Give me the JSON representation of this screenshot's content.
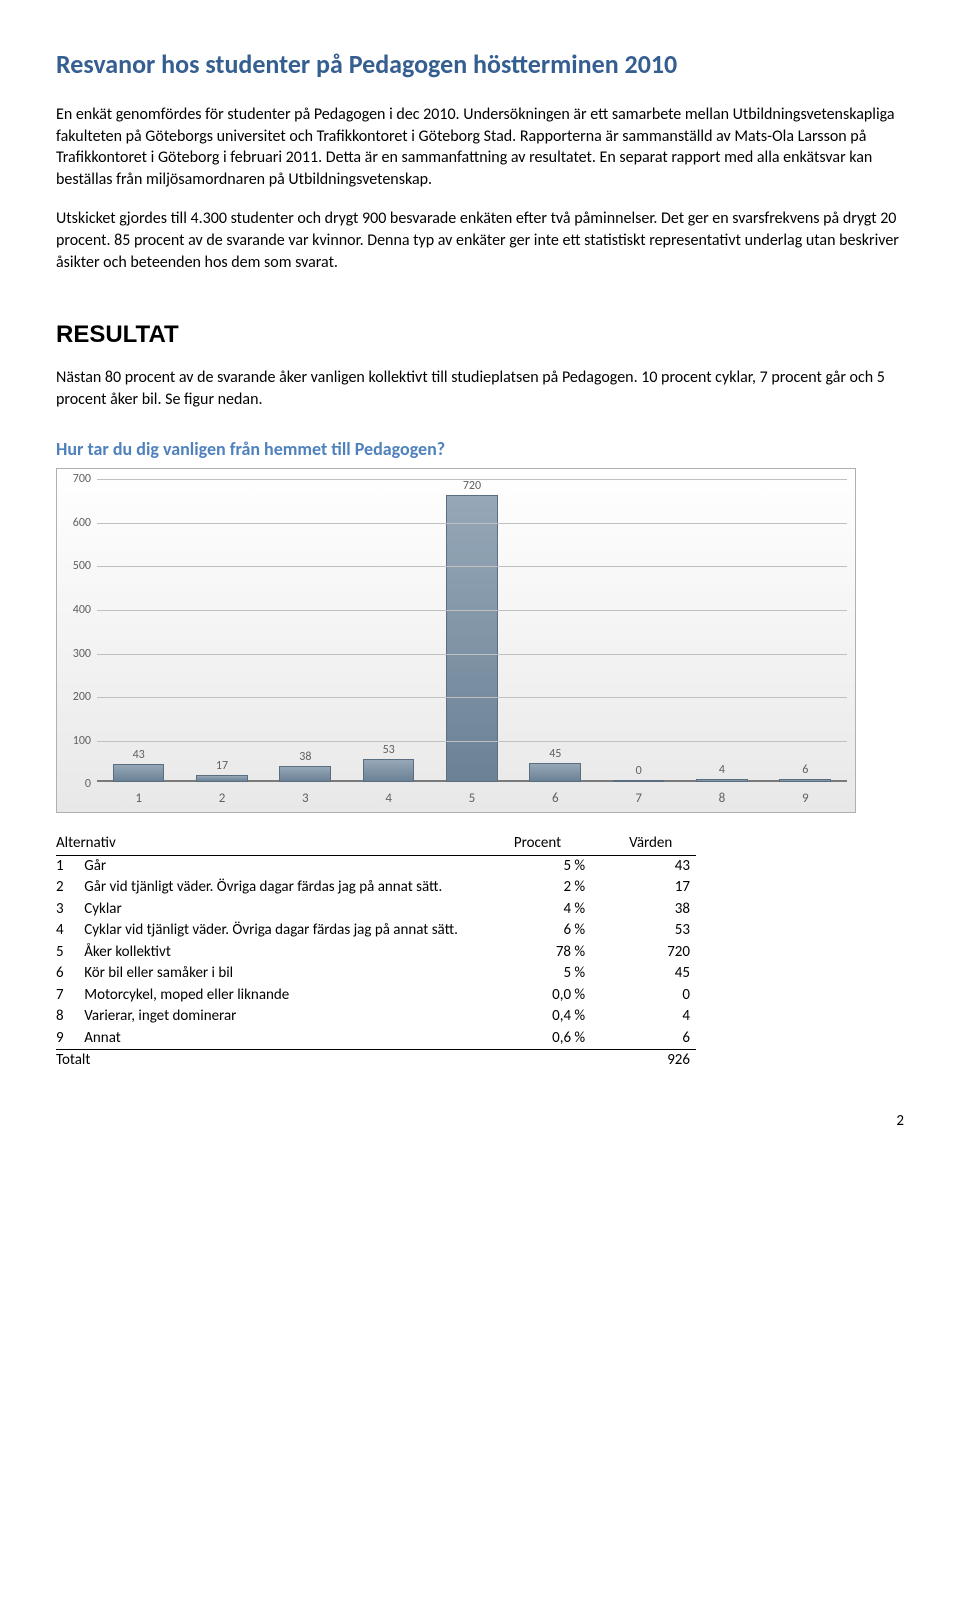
{
  "title": "Resvanor hos studenter på Pedagogen höstterminen 2010",
  "para1": "En enkät genomfördes för studenter på Pedagogen i dec 2010. Undersökningen är ett samarbete mellan Utbildningsvetenskapliga fakulteten på Göteborgs universitet och Trafikkontoret i Göteborg Stad. Rapporterna är sammanställd av Mats-Ola Larsson på Trafikkontoret i Göteborg i februari 2011. Detta är en sammanfattning av resultatet. En separat rapport med alla enkätsvar kan beställas från miljösamordnaren på Utbildningsvetenskap.",
  "para2": "Utskicket gjordes till 4.300 studenter och drygt 900 besvarade enkäten efter två påminnelser. Det ger en svarsfrekvens på drygt 20 procent. 85 procent av de svarande var kvinnor. Denna typ av enkäter ger inte ett statistiskt representativt underlag utan beskriver åsikter och beteenden hos dem som svarat.",
  "resultat_heading": "RESULTAT",
  "resultat_para": "Nästan 80 procent av de svarande åker vanligen kollektivt till studieplatsen på Pedagogen. 10 procent cyklar, 7 procent går och 5 procent åker bil. Se figur nedan.",
  "question": "Hur tar du dig vanligen från hemmet till Pedagogen?",
  "chart": {
    "type": "bar",
    "ymax": 700,
    "ytick_step": 100,
    "bar_fill_top": "#96a8b8",
    "bar_fill_bottom": "#6b8195",
    "bar_border": "#5a6e80",
    "grid_color": "#c0c0c0",
    "bg_top": "#ffffff",
    "bg_bottom": "#e8e8e8",
    "axis_color": "#606060",
    "categories": [
      "1",
      "2",
      "3",
      "4",
      "5",
      "6",
      "7",
      "8",
      "9"
    ],
    "values": [
      43,
      17,
      38,
      53,
      720,
      45,
      0,
      4,
      6
    ]
  },
  "table": {
    "headers": {
      "alt": "Alternativ",
      "pct": "Procent",
      "val": "Värden"
    },
    "rows": [
      {
        "n": "1",
        "label": "Går",
        "pct": "5 %",
        "val": "43"
      },
      {
        "n": "2",
        "label": "Går vid tjänligt väder. Övriga dagar färdas jag på annat sätt.",
        "pct": "2 %",
        "val": "17"
      },
      {
        "n": "3",
        "label": "Cyklar",
        "pct": "4 %",
        "val": "38"
      },
      {
        "n": "4",
        "label": "Cyklar vid tjänligt väder. Övriga dagar färdas jag på annat sätt.",
        "pct": "6 %",
        "val": "53"
      },
      {
        "n": "5",
        "label": "Åker kollektivt",
        "pct": "78 %",
        "val": "720"
      },
      {
        "n": "6",
        "label": "Kör bil eller samåker i bil",
        "pct": "5 %",
        "val": "45"
      },
      {
        "n": "7",
        "label": "Motorcykel, moped eller liknande",
        "pct": "0,0 %",
        "val": "0"
      },
      {
        "n": "8",
        "label": "Varierar, inget dominerar",
        "pct": "0,4 %",
        "val": "4"
      },
      {
        "n": "9",
        "label": "Annat",
        "pct": "0,6 %",
        "val": "6"
      }
    ],
    "total_label": "Totalt",
    "total_val": "926"
  },
  "page_number": "2",
  "colors": {
    "heading_blue": "#365f91",
    "subhead_blue": "#4f81bd"
  }
}
